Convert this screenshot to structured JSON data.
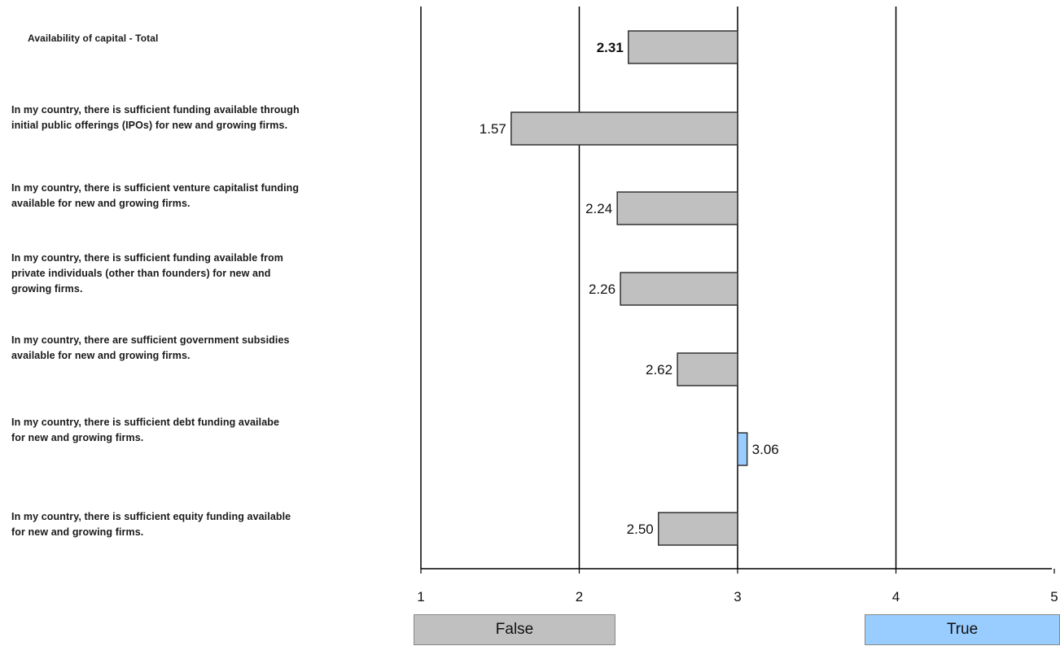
{
  "chart_data": {
    "type": "bar",
    "orientation": "horizontal",
    "baseline": 3,
    "xlim": [
      1,
      5
    ],
    "x_ticks": [
      "1",
      "2",
      "3",
      "4",
      "5"
    ],
    "categories": [
      "Availability of capital - Total",
      "In my country, there is sufficient funding available through initial public offerings (IPOs) for new and growing firms.",
      "In my country, there is sufficient venture capitalist funding available for new and growing firms.",
      "In my country, there is sufficient funding available from private individuals (other than founders) for new and growing firms.",
      "In my country, there are sufficient government subsidies available for new and growing firms.",
      "In my country, there is sufficient debt funding availabe for new and growing firms.",
      "In my country, there is sufficient equity funding available for new and growing firms."
    ],
    "values": [
      2.31,
      1.57,
      2.24,
      2.26,
      2.62,
      3.06,
      2.5
    ],
    "value_labels": [
      "2.31",
      "1.57",
      "2.24",
      "2.26",
      "2.62",
      "3.06",
      "2.50"
    ],
    "legend": [
      {
        "label": "False",
        "color": "#c0c0c0"
      },
      {
        "label": "True",
        "color": "#99ccff"
      }
    ],
    "colors": {
      "below": "#c0c0c0",
      "above": "#99ccff"
    },
    "grid": true
  }
}
